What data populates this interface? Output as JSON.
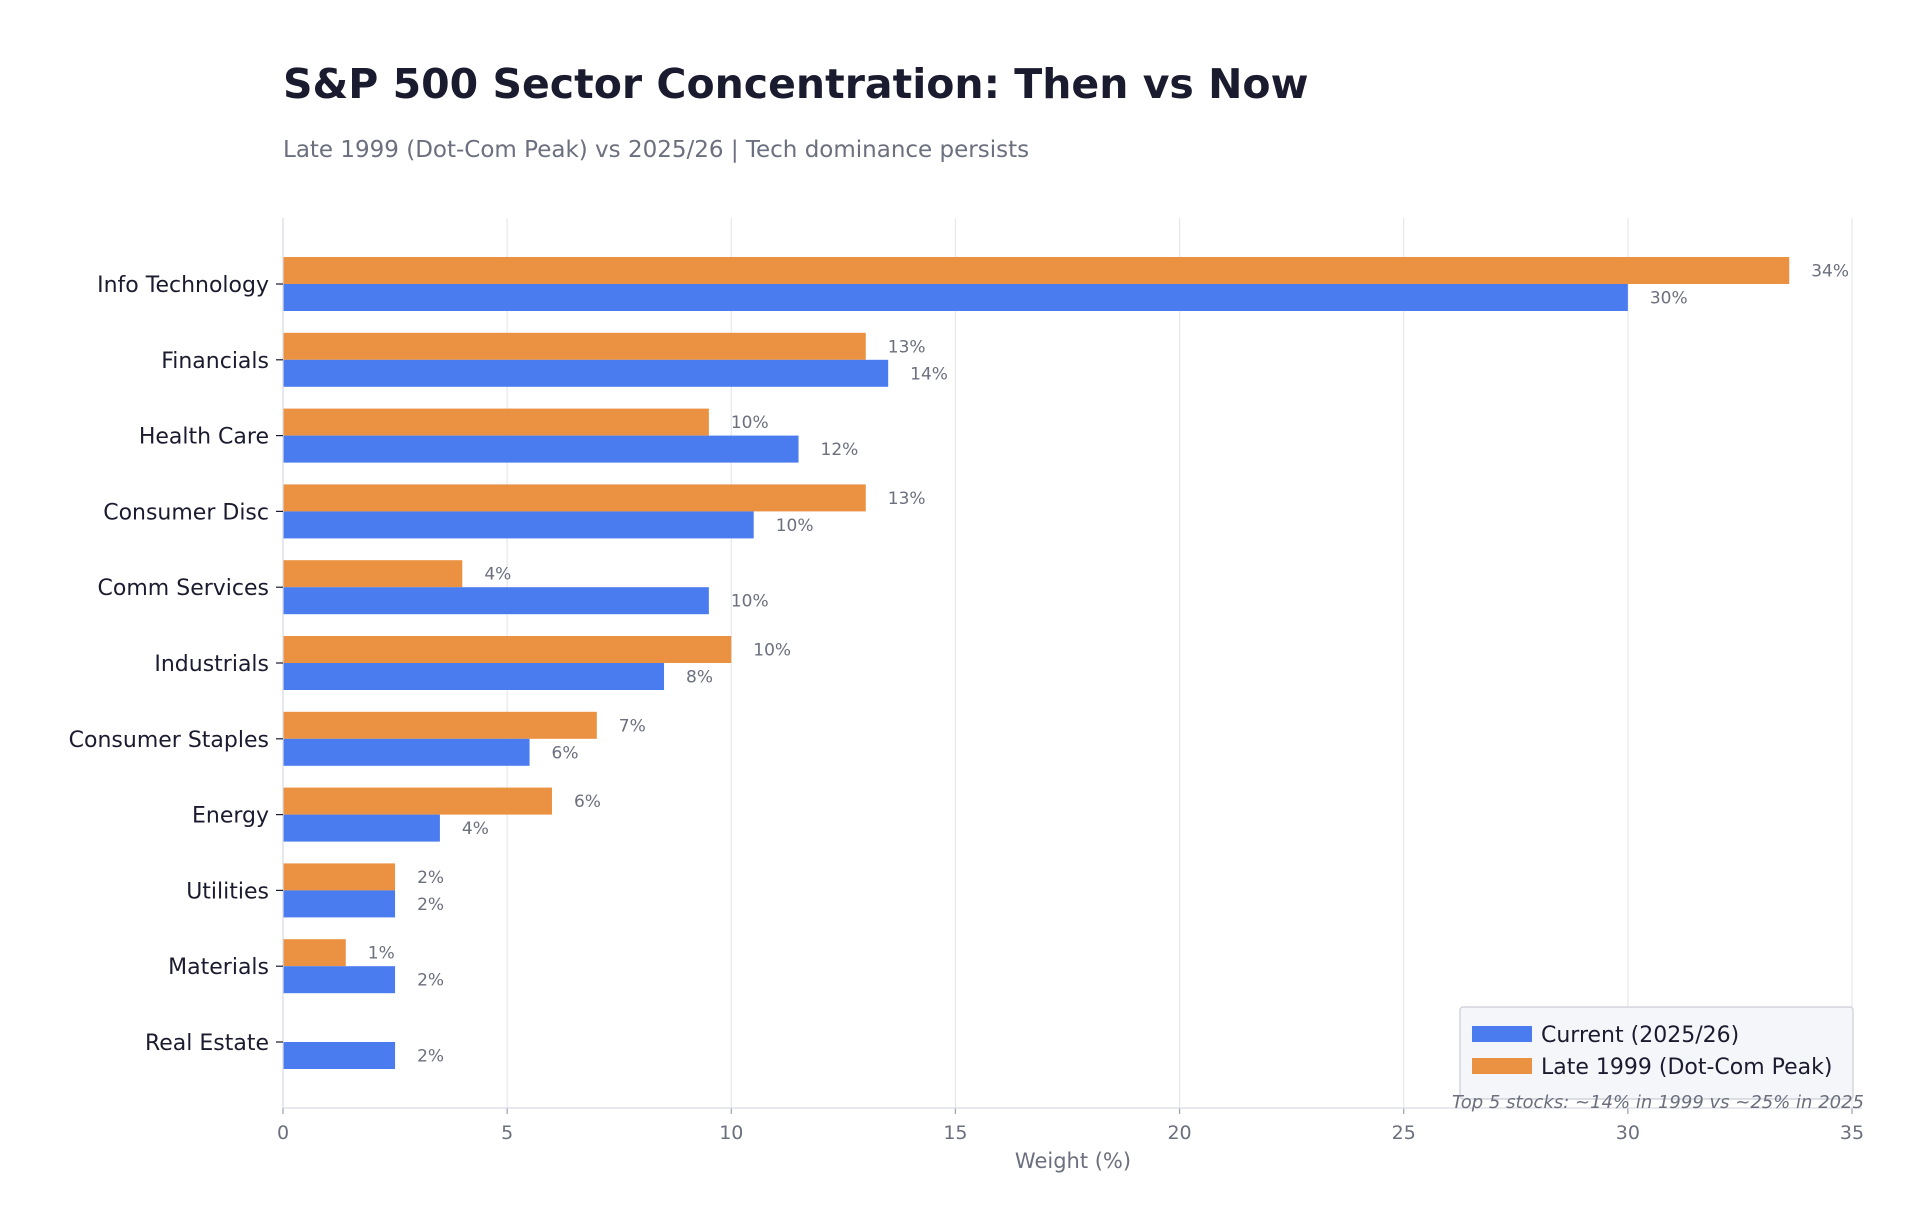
{
  "chart_data": {
    "type": "bar",
    "orientation": "horizontal",
    "title": "S&P 500 Sector Concentration: Then vs Now",
    "subtitle": "Late 1999 (Dot-Com Peak) vs 2025/26 | Tech dominance persists",
    "xlabel": "Weight (%)",
    "ylabel": "",
    "xlim": [
      0,
      35
    ],
    "xticks": [
      0,
      5,
      10,
      15,
      20,
      25,
      30,
      35
    ],
    "grid": true,
    "legend_position": "bottom-right",
    "value_suffix": "%",
    "categories": [
      "Info Technology",
      "Financials",
      "Health Care",
      "Consumer Disc",
      "Comm Services",
      "Industrials",
      "Consumer Staples",
      "Energy",
      "Utilities",
      "Materials",
      "Real Estate"
    ],
    "series": [
      {
        "name": "Current (2025/26)",
        "color": "#4a7cf0",
        "values": [
          30,
          13.5,
          11.5,
          10.5,
          9.5,
          8.5,
          5.5,
          3.5,
          2.5,
          2.5,
          2.5
        ],
        "labels": [
          "30%",
          "14%",
          "12%",
          "10%",
          "10%",
          "8%",
          "6%",
          "4%",
          "2%",
          "2%",
          "2%"
        ]
      },
      {
        "name": "Late 1999 (Dot-Com Peak)",
        "color": "#ea9142",
        "values": [
          33.6,
          13,
          9.5,
          13,
          4,
          10,
          7,
          6,
          2.5,
          1.4,
          null
        ],
        "labels": [
          "34%",
          "13%",
          "10%",
          "13%",
          "4%",
          "10%",
          "7%",
          "6%",
          "2%",
          "1%",
          null
        ]
      }
    ],
    "annotation": "Top 5 stocks: ~14% in 1999 vs ~25% in 2025"
  }
}
